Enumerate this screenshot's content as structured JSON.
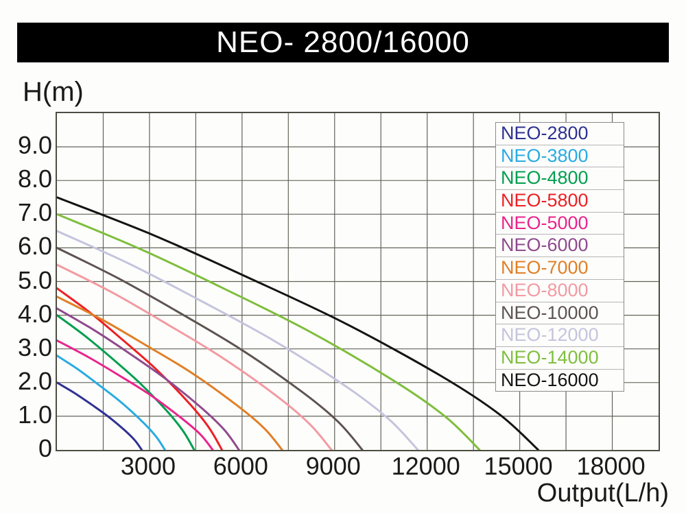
{
  "banner": {
    "text": "NEO- 2800/16000"
  },
  "axes": {
    "y_title": "H(m)",
    "x_title": "Output(L/h)"
  },
  "chart_data": {
    "type": "line",
    "title": "NEO- 2800/16000",
    "xlabel": "Output(L/h)",
    "ylabel": "H(m)",
    "xlim": [
      0,
      19500
    ],
    "ylim": [
      0,
      10
    ],
    "grid": true,
    "x_gridline_step": 1500,
    "y_gridline_step": 1,
    "x_tick_values": [
      3000,
      6000,
      9000,
      12000,
      15000,
      18000
    ],
    "x_tick_labels": [
      "3000",
      "6000",
      "9000",
      "12000",
      "15000",
      "18000"
    ],
    "y_tick_values": [
      9,
      8,
      7,
      6,
      5,
      4,
      3,
      2,
      1,
      0
    ],
    "y_tick_labels": [
      "9.0",
      "8.0",
      "7.0",
      "6.0",
      "5.0",
      "4.0",
      "3.0",
      "2.0",
      "1.0",
      "0"
    ],
    "legend_position": "upper right",
    "grid_color": "#63635a",
    "series": [
      {
        "name": "NEO-2800",
        "color": "#2e3192",
        "max_head_m": 2.0,
        "max_flow_lh": 2750,
        "points": [
          [
            0,
            2.0
          ],
          [
            550,
            1.7
          ],
          [
            1100,
            1.36
          ],
          [
            1650,
            1.0
          ],
          [
            2200,
            0.58
          ],
          [
            2530,
            0.28
          ],
          [
            2750,
            0
          ]
        ]
      },
      {
        "name": "NEO-3800",
        "color": "#29abe2",
        "max_head_m": 2.8,
        "max_flow_lh": 3500,
        "points": [
          [
            0,
            2.8
          ],
          [
            700,
            2.38
          ],
          [
            1400,
            1.9
          ],
          [
            2100,
            1.4
          ],
          [
            2800,
            0.81
          ],
          [
            3220,
            0.39
          ],
          [
            3500,
            0
          ]
        ]
      },
      {
        "name": "NEO-4800",
        "color": "#009e4f",
        "max_head_m": 4.0,
        "max_flow_lh": 4450,
        "points": [
          [
            0,
            4.0
          ],
          [
            890,
            3.4
          ],
          [
            1780,
            2.72
          ],
          [
            2670,
            2.0
          ],
          [
            3560,
            1.16
          ],
          [
            4090,
            0.56
          ],
          [
            4450,
            0
          ]
        ]
      },
      {
        "name": "NEO-5800",
        "color": "#ed2024",
        "max_head_m": 4.8,
        "max_flow_lh": 5350,
        "points": [
          [
            0,
            4.8
          ],
          [
            1070,
            4.08
          ],
          [
            2140,
            3.26
          ],
          [
            3210,
            2.4
          ],
          [
            4280,
            1.39
          ],
          [
            4920,
            0.67
          ],
          [
            5350,
            0
          ]
        ]
      },
      {
        "name": "NEO-5000",
        "color": "#e9248c",
        "max_head_m": 3.25,
        "max_flow_lh": 5050,
        "points": [
          [
            0,
            3.25
          ],
          [
            1010,
            2.76
          ],
          [
            2020,
            2.21
          ],
          [
            3030,
            1.63
          ],
          [
            4040,
            0.94
          ],
          [
            4650,
            0.46
          ],
          [
            5050,
            0
          ]
        ]
      },
      {
        "name": "NEO-6000",
        "color": "#8f4a8e",
        "max_head_m": 4.2,
        "max_flow_lh": 5900,
        "points": [
          [
            0,
            4.2
          ],
          [
            1180,
            3.57
          ],
          [
            2360,
            2.86
          ],
          [
            3540,
            2.1
          ],
          [
            4720,
            1.22
          ],
          [
            5430,
            0.59
          ],
          [
            5900,
            0
          ]
        ]
      },
      {
        "name": "NEO-7000",
        "color": "#e07f26",
        "max_head_m": 4.55,
        "max_flow_lh": 7300,
        "points": [
          [
            0,
            4.55
          ],
          [
            1460,
            3.87
          ],
          [
            2920,
            3.09
          ],
          [
            4380,
            2.28
          ],
          [
            5840,
            1.32
          ],
          [
            6720,
            0.64
          ],
          [
            7300,
            0
          ]
        ]
      },
      {
        "name": "NEO-8000",
        "color": "#f29aa2",
        "max_head_m": 5.5,
        "max_flow_lh": 8900,
        "points": [
          [
            0,
            5.5
          ],
          [
            1780,
            4.68
          ],
          [
            3560,
            3.74
          ],
          [
            5340,
            2.75
          ],
          [
            7120,
            1.6
          ],
          [
            8190,
            0.77
          ],
          [
            8900,
            0
          ]
        ]
      },
      {
        "name": "NEO-10000",
        "color": "#5d5450",
        "max_head_m": 6.0,
        "max_flow_lh": 9900,
        "points": [
          [
            0,
            6.0
          ],
          [
            1980,
            5.1
          ],
          [
            3960,
            4.08
          ],
          [
            5940,
            3.0
          ],
          [
            7920,
            1.74
          ],
          [
            9110,
            0.84
          ],
          [
            9900,
            0
          ]
        ]
      },
      {
        "name": "NEO-12000",
        "color": "#c5c4dd",
        "max_head_m": 6.5,
        "max_flow_lh": 11700,
        "points": [
          [
            0,
            6.5
          ],
          [
            2340,
            5.53
          ],
          [
            4680,
            4.42
          ],
          [
            7020,
            3.25
          ],
          [
            9360,
            1.89
          ],
          [
            10760,
            0.91
          ],
          [
            11700,
            0
          ]
        ]
      },
      {
        "name": "NEO-14000",
        "color": "#7fbe3d",
        "max_head_m": 7.0,
        "max_flow_lh": 13700,
        "points": [
          [
            0,
            7.0
          ],
          [
            2740,
            5.95
          ],
          [
            5480,
            4.76
          ],
          [
            8220,
            3.5
          ],
          [
            10960,
            2.03
          ],
          [
            12600,
            0.98
          ],
          [
            13700,
            0
          ]
        ]
      },
      {
        "name": "NEO-16000",
        "color": "#141414",
        "max_head_m": 7.5,
        "max_flow_lh": 15600,
        "points": [
          [
            0,
            7.5
          ],
          [
            3120,
            6.38
          ],
          [
            6240,
            5.1
          ],
          [
            9360,
            3.75
          ],
          [
            12480,
            2.18
          ],
          [
            14350,
            1.05
          ],
          [
            15600,
            0
          ]
        ]
      }
    ]
  }
}
